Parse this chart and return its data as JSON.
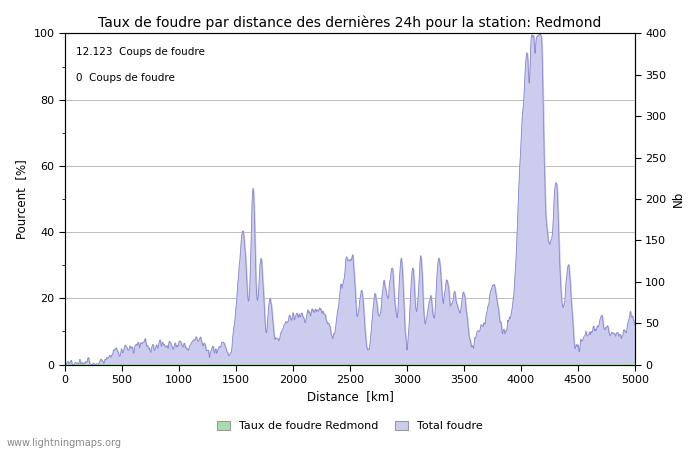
{
  "title": "Taux de foudre par distance des dernières 24h pour la station: Redmond",
  "xlabel": "Distance  [km]",
  "ylabel_left": "Pourcent  [%]",
  "ylabel_right": "Nb",
  "xlim": [
    0,
    5000
  ],
  "ylim_left": [
    0,
    100
  ],
  "ylim_right": [
    0,
    400
  ],
  "annotation_line1": "12.123  Coups de foudre",
  "annotation_line2": "0  Coups de foudre",
  "legend_green": "Taux de foudre Redmond",
  "legend_blue": "Total foudre",
  "watermark": "www.lightningmaps.org",
  "line_color": "#8888cc",
  "fill_blue_color": "#ccccee",
  "fill_green_color": "#aaddaa",
  "background_color": "#ffffff",
  "grid_color": "#bbbbbb",
  "title_fontsize": 10,
  "label_fontsize": 8.5,
  "tick_fontsize": 8,
  "yticks_left": [
    0,
    20,
    40,
    60,
    80,
    100
  ],
  "minor_yticks_left": [
    10,
    30,
    50,
    70,
    90
  ],
  "yticks_right": [
    0,
    50,
    100,
    150,
    200,
    250,
    300,
    350,
    400
  ],
  "xticks": [
    0,
    500,
    1000,
    1500,
    2000,
    2500,
    3000,
    3500,
    4000,
    4500,
    5000
  ],
  "figsize": [
    7.0,
    4.5
  ],
  "dpi": 100
}
